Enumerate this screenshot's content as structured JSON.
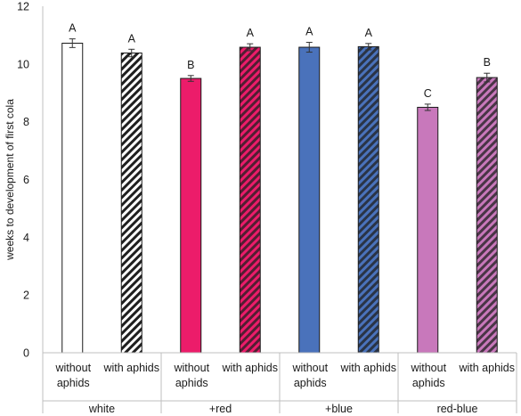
{
  "chart_data": {
    "type": "bar",
    "ylabel": "weeks to development of first cola",
    "ylim": [
      0,
      12
    ],
    "yticks": [
      0,
      2,
      4,
      6,
      8,
      10,
      12
    ],
    "grid": false,
    "groups": [
      {
        "label": "white",
        "bars": [
          {
            "label": "without aphids",
            "value": 10.72,
            "error": 0.15,
            "letter": "A",
            "color": "#ffffff",
            "hatched": false
          },
          {
            "label": "with aphids",
            "value": 10.38,
            "error": 0.13,
            "letter": "A",
            "color": "#ffffff",
            "hatched": true
          }
        ]
      },
      {
        "label": "+red",
        "bars": [
          {
            "label": "without aphids",
            "value": 9.5,
            "error": 0.1,
            "letter": "B",
            "color": "#ec1c6a",
            "hatched": false
          },
          {
            "label": "with aphids",
            "value": 10.58,
            "error": 0.12,
            "letter": "A",
            "color": "#ec1c6a",
            "hatched": true
          }
        ]
      },
      {
        "label": "+blue",
        "bars": [
          {
            "label": "without aphids",
            "value": 10.58,
            "error": 0.17,
            "letter": "A",
            "color": "#4a72bb",
            "hatched": false
          },
          {
            "label": "with aphids",
            "value": 10.6,
            "error": 0.11,
            "letter": "A",
            "color": "#4a72bb",
            "hatched": true
          }
        ]
      },
      {
        "label": "red-blue",
        "bars": [
          {
            "label": "without aphids",
            "value": 8.5,
            "error": 0.11,
            "letter": "C",
            "color": "#c878bb",
            "hatched": false
          },
          {
            "label": "with aphids",
            "value": 9.53,
            "error": 0.15,
            "letter": "B",
            "color": "#c878bb",
            "hatched": true
          }
        ]
      }
    ]
  }
}
